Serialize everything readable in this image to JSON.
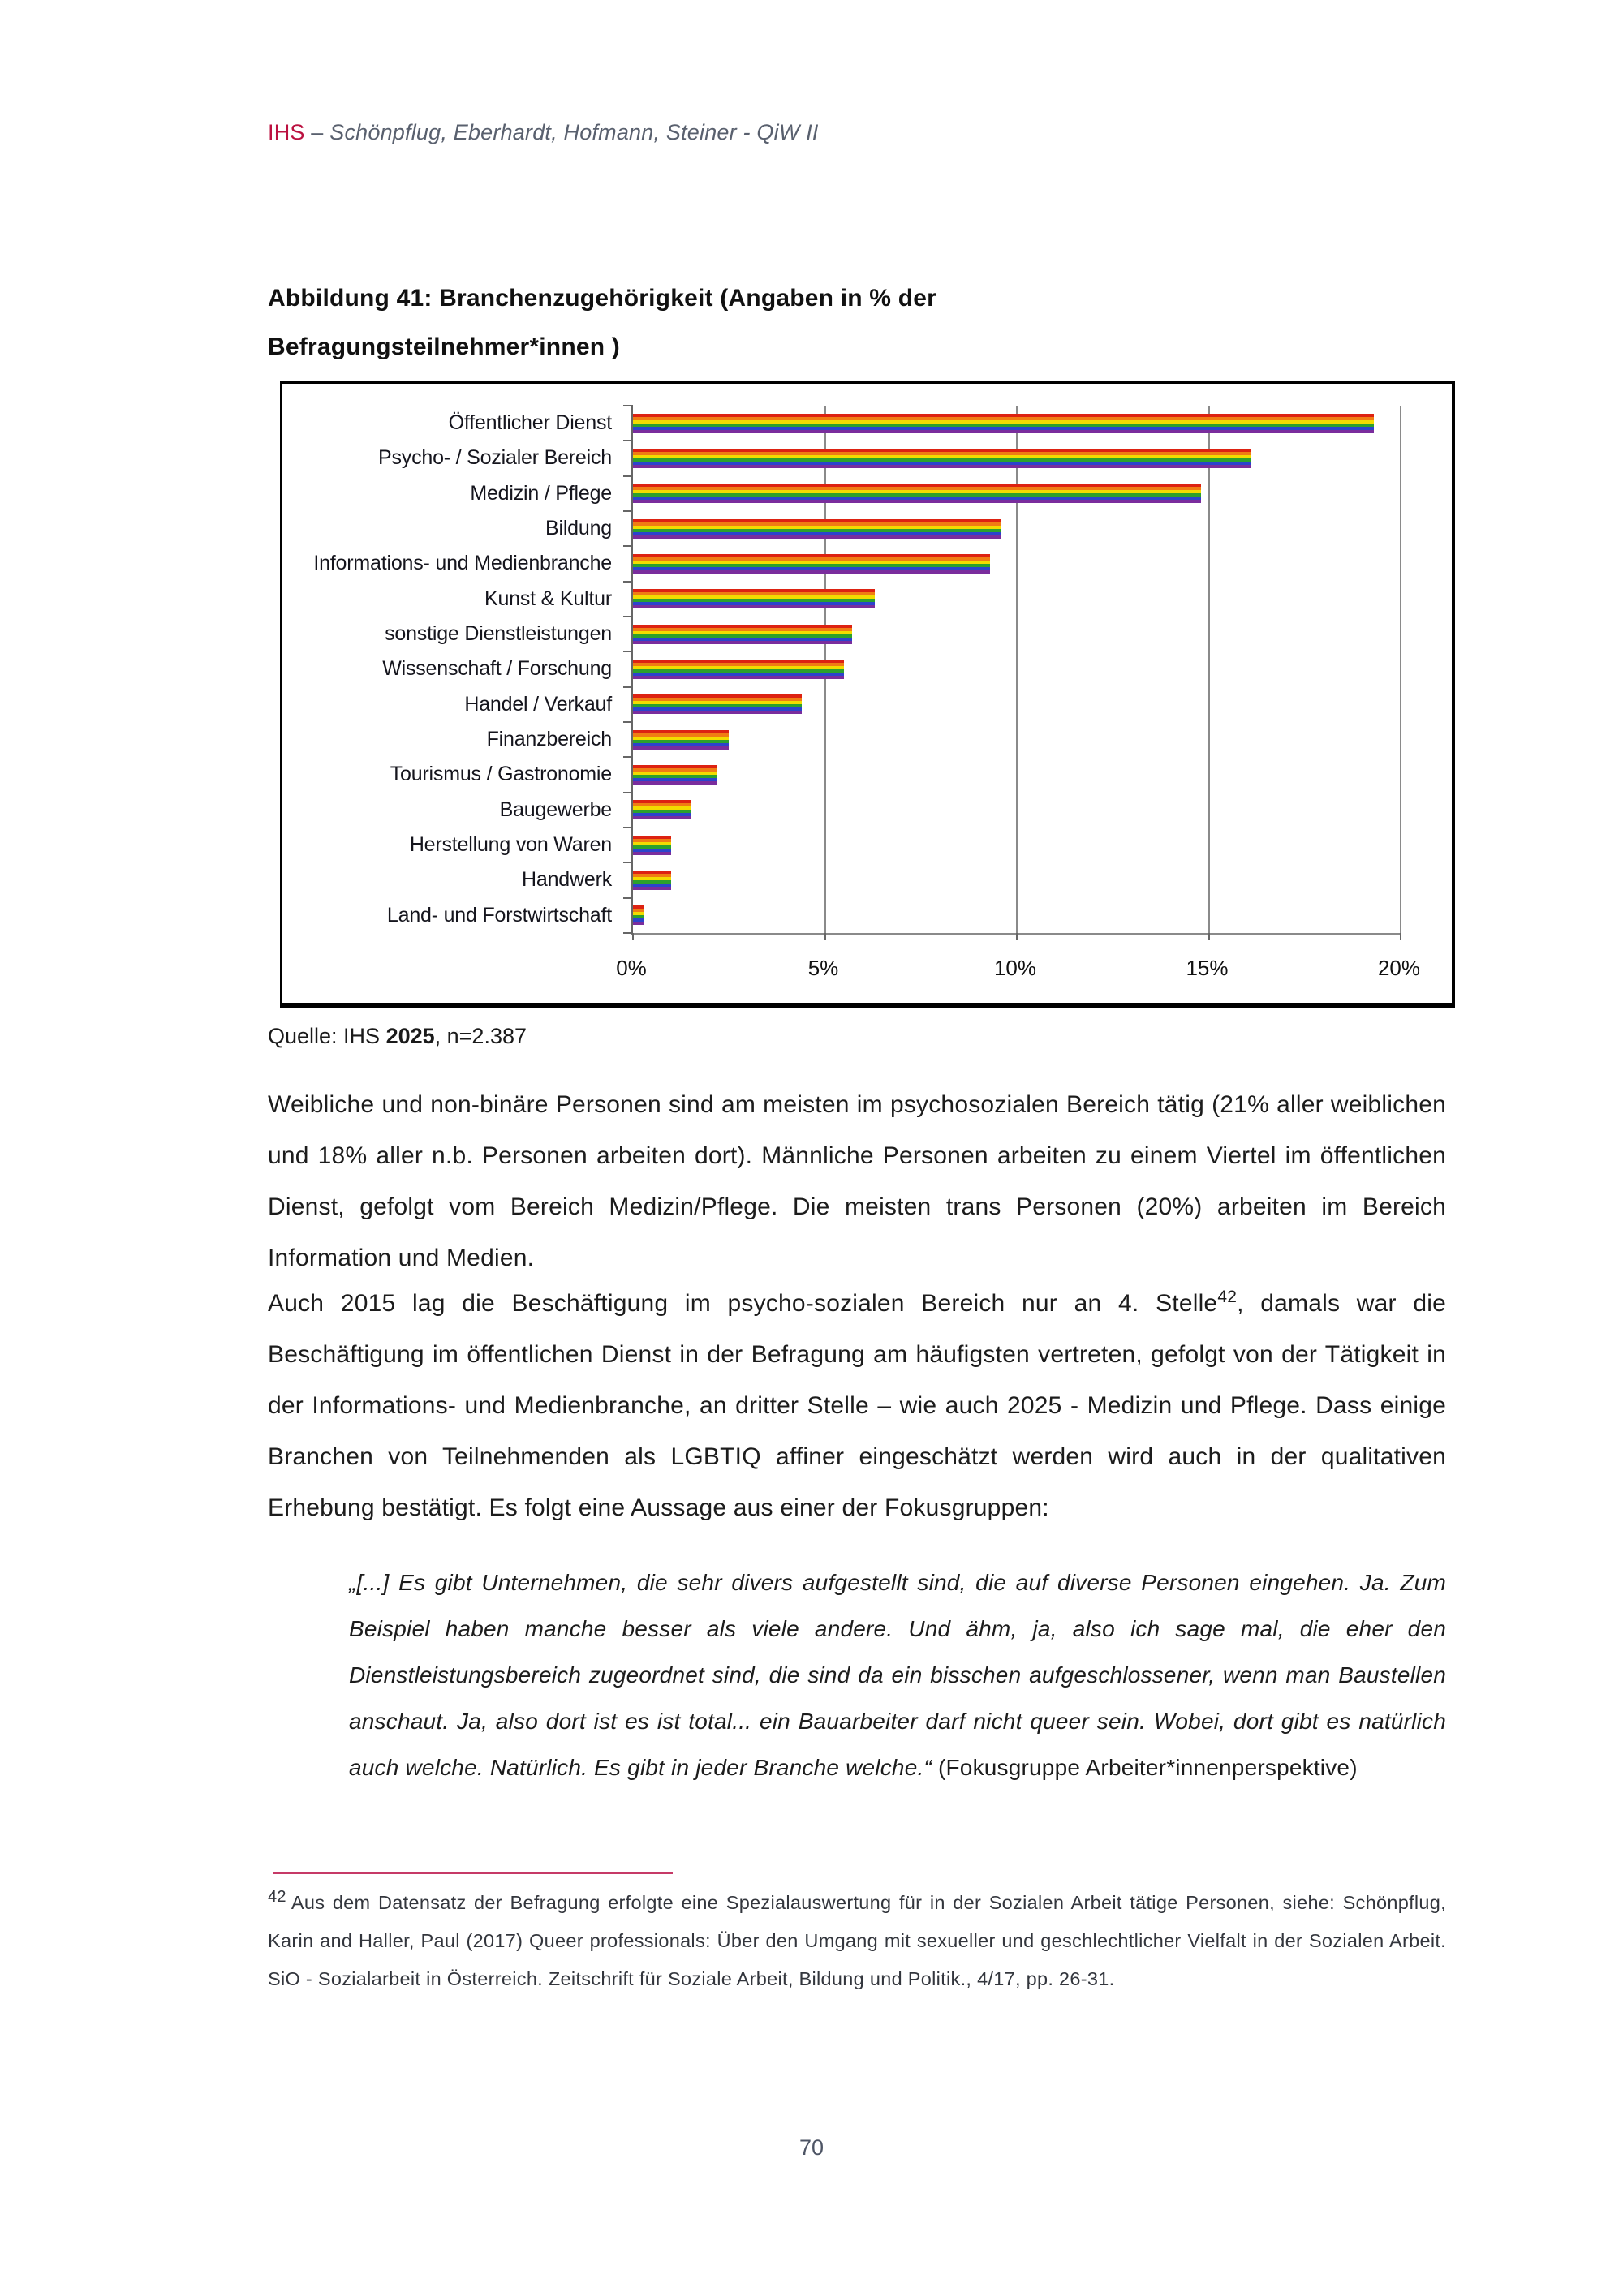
{
  "header": {
    "brand": "IHS",
    "separator": " – ",
    "authors": "Schönpflug, Eberhardt, Hofmann, Steiner - QiW II"
  },
  "figure_title": {
    "line1": "Abbildung 41: Branchenzugehörigkeit (Angaben in % der",
    "line2": "Befragungsteilnehmer*innen )"
  },
  "chart_data": {
    "type": "bar",
    "orientation": "horizontal",
    "title": "Abbildung 41: Branchenzugehörigkeit (Angaben in % der Befragungsteilnehmer*innen)",
    "categories": [
      "Öffentlicher Dienst",
      "Psycho- / Sozialer Bereich",
      "Medizin / Pflege",
      "Bildung",
      "Informations- und Medienbranche",
      "Kunst & Kultur",
      "sonstige Dienstleistungen",
      "Wissenschaft / Forschung",
      "Handel / Verkauf",
      "Finanzbereich",
      "Tourismus / Gastronomie",
      "Baugewerbe",
      "Herstellung von Waren",
      "Handwerk",
      "Land- und Forstwirtschaft"
    ],
    "values": [
      19.3,
      16.1,
      14.8,
      9.6,
      9.3,
      6.3,
      5.7,
      5.5,
      4.4,
      2.5,
      2.2,
      1.5,
      1.0,
      1.0,
      0.3
    ],
    "unit": "%",
    "xlim": [
      0,
      20
    ],
    "x_tick_labels": [
      "0%",
      "5%",
      "10%",
      "15%",
      "20%"
    ],
    "grid": true,
    "legend": "none",
    "bar_stripe_colors": [
      "#dd2212",
      "#f07d13",
      "#f2dc00",
      "#2ca12c",
      "#2b44cc",
      "#7a2d9d"
    ]
  },
  "source": {
    "prefix": "Quelle: IHS ",
    "year_bold": "2025",
    "suffix": ", n=2.387"
  },
  "paragraph1": "Weibliche und non-binäre Personen sind am meisten im psychosozialen Bereich tätig (21% aller weiblichen und 18% aller n.b. Personen arbeiten dort). Männliche Personen arbeiten zu einem Viertel im öffentlichen Dienst, gefolgt vom Bereich Medizin/Pflege. Die meisten trans Personen (20%) arbeiten im Bereich Information und Medien.",
  "paragraph2": {
    "before_sup": "Auch 2015 lag die Beschäftigung im psycho-sozialen Bereich nur an 4. Stelle",
    "sup": "42",
    "after_sup": ", damals war die Beschäftigung im öffentlichen Dienst in der Befragung am häufigsten vertreten, gefolgt von der Tätigkeit in der Informations- und Medienbranche, an dritter Stelle – wie auch 2025 - Medizin und Pflege. Dass einige Branchen von Teilnehmenden als LGBTIQ affiner eingeschätzt werden wird auch in der qualitativen Erhebung bestätigt. Es folgt eine Aussage aus einer der Fokusgruppen:"
  },
  "quote": {
    "text": "„[...] Es gibt Unternehmen, die sehr divers aufgestellt sind, die auf diverse Personen eingehen. Ja. Zum Beispiel haben manche besser als viele andere. Und ähm, ja, also ich sage mal, die eher den Dienstleistungsbereich zugeordnet sind, die sind da ein bisschen aufgeschlossener, wenn man Baustellen anschaut. Ja, also dort ist es ist total... ein Bauarbeiter darf nicht queer sein. Wobei, dort gibt es natürlich auch welche. Natürlich. Es gibt in jeder Branche welche.“ ",
    "attribution": "(Fokusgruppe Arbeiter*innenperspektive)"
  },
  "footnote": {
    "marker": "42",
    "text": "Aus dem Datensatz der Befragung erfolgte eine Spezialauswertung für in der Sozialen Arbeit tätige Personen, siehe: Schönpflug, Karin and Haller, Paul (2017) Queer professionals: Über den Umgang mit sexueller und geschlechtlicher Vielfalt in der Sozialen Arbeit. SiO - Sozialarbeit in Österreich. Zeitschrift für Soziale Arbeit, Bildung und Politik., 4/17, pp. 26-31."
  },
  "page_number": "70"
}
